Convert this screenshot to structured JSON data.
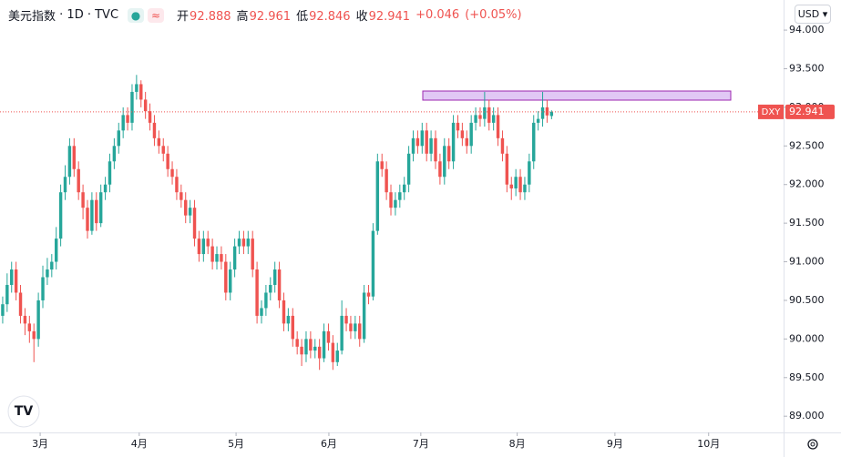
{
  "chart_data": {
    "type": "candlestick",
    "title": "美元指数",
    "interval": "1D",
    "exchange": "TVC",
    "ohlc": [
      {
        "label": "开",
        "value": 92.888
      },
      {
        "label": "高",
        "value": 92.961
      },
      {
        "label": "低",
        "value": 92.846
      },
      {
        "label": "收",
        "value": 92.941
      }
    ],
    "change": "+0.046",
    "change_pct": "(+0.05%)",
    "currency": "USD",
    "symbol": "DXY",
    "up_color": "#26a69a",
    "down_color": "#ef5350",
    "x": [
      0,
      1,
      2,
      3,
      4,
      5,
      6,
      7,
      8,
      9,
      10,
      11,
      12,
      13,
      14,
      15,
      16,
      17,
      18,
      19,
      20,
      21,
      22,
      23,
      24,
      25,
      26,
      27,
      28,
      29,
      30,
      31,
      32,
      33,
      34,
      35,
      36,
      37,
      38,
      39,
      40,
      41,
      42,
      43,
      44,
      45,
      46,
      47,
      48,
      49,
      50,
      51,
      52,
      53,
      54,
      55,
      56,
      57,
      58,
      59,
      60,
      61,
      62,
      63,
      64,
      65,
      66,
      67,
      68,
      69,
      70,
      71,
      72,
      73,
      74,
      75,
      76,
      77,
      78,
      79,
      80,
      81,
      82,
      83,
      84,
      85,
      86,
      87,
      88,
      89,
      90,
      91,
      92,
      93,
      94,
      95,
      96,
      97,
      98,
      99,
      100,
      101,
      102,
      103,
      104,
      105,
      106,
      107,
      108,
      109,
      110,
      111,
      112,
      113,
      114,
      115,
      116,
      117,
      118,
      119,
      120,
      121,
      122,
      123
    ],
    "open": [
      90.3,
      90.45,
      90.7,
      90.9,
      90.6,
      90.3,
      90.2,
      90.1,
      90.0,
      90.5,
      90.8,
      90.9,
      91.0,
      91.3,
      91.9,
      92.1,
      92.5,
      92.2,
      91.9,
      91.7,
      91.4,
      91.8,
      91.5,
      91.9,
      92.0,
      92.3,
      92.5,
      92.7,
      92.9,
      92.8,
      93.2,
      93.3,
      93.1,
      92.95,
      92.8,
      92.6,
      92.5,
      92.4,
      92.2,
      92.1,
      91.9,
      91.8,
      91.6,
      91.7,
      91.3,
      91.1,
      91.3,
      91.2,
      91.0,
      91.1,
      91.0,
      90.6,
      90.9,
      91.2,
      91.3,
      91.2,
      91.3,
      90.9,
      90.3,
      90.4,
      90.6,
      90.7,
      90.9,
      90.5,
      90.2,
      90.3,
      90.0,
      89.9,
      89.8,
      90.0,
      89.85,
      89.9,
      89.75,
      90.1,
      89.95,
      89.7,
      89.85,
      90.3,
      90.2,
      90.1,
      90.2,
      90.0,
      90.6,
      90.55,
      91.4,
      92.3,
      92.2,
      91.9,
      91.7,
      91.8,
      91.9,
      92.0,
      92.4,
      92.6,
      92.5,
      92.7,
      92.4,
      92.6,
      92.3,
      92.1,
      92.5,
      92.3,
      92.8,
      92.7,
      92.6,
      92.5,
      92.8,
      92.9,
      92.85,
      93.0,
      92.8,
      92.9,
      92.6,
      92.4,
      92.0,
      91.95,
      92.1,
      91.9,
      92.0,
      92.3,
      92.8,
      92.85,
      93.0,
      92.888
    ],
    "high": [
      90.55,
      90.85,
      91.0,
      91.0,
      90.7,
      90.4,
      90.3,
      90.2,
      90.6,
      90.95,
      91.05,
      91.1,
      91.45,
      92.0,
      92.25,
      92.6,
      92.6,
      92.3,
      92.0,
      91.8,
      91.9,
      91.9,
      92.0,
      92.1,
      92.4,
      92.6,
      92.8,
      93.0,
      93.0,
      93.3,
      93.42,
      93.35,
      93.2,
      93.05,
      92.9,
      92.7,
      92.6,
      92.5,
      92.3,
      92.2,
      92.0,
      91.9,
      91.8,
      91.8,
      91.4,
      91.4,
      91.4,
      91.3,
      91.2,
      91.2,
      91.1,
      91.0,
      91.3,
      91.4,
      91.4,
      91.4,
      91.4,
      91.0,
      90.5,
      90.7,
      90.8,
      91.0,
      91.0,
      90.6,
      90.4,
      90.4,
      90.1,
      90.0,
      90.1,
      90.1,
      90.0,
      90.0,
      90.2,
      90.2,
      90.05,
      89.95,
      90.5,
      90.4,
      90.3,
      90.3,
      90.3,
      90.7,
      90.7,
      91.5,
      92.4,
      92.4,
      92.3,
      92.0,
      91.9,
      92.0,
      92.1,
      92.5,
      92.7,
      92.7,
      92.8,
      92.8,
      92.7,
      92.7,
      92.4,
      92.6,
      92.6,
      92.9,
      92.9,
      92.8,
      92.7,
      92.9,
      93.0,
      93.0,
      93.2,
      93.1,
      93.0,
      93.0,
      92.7,
      92.5,
      92.1,
      92.2,
      92.2,
      92.1,
      92.4,
      92.9,
      92.95,
      93.2,
      93.1,
      92.961
    ],
    "low": [
      90.2,
      90.35,
      90.6,
      90.5,
      90.2,
      90.05,
      89.95,
      89.7,
      89.9,
      90.4,
      90.7,
      90.8,
      90.9,
      91.2,
      91.8,
      92.0,
      92.1,
      91.8,
      91.55,
      91.3,
      91.35,
      91.4,
      91.45,
      91.8,
      91.9,
      92.2,
      92.4,
      92.6,
      92.7,
      92.7,
      93.1,
      93.0,
      92.85,
      92.7,
      92.5,
      92.4,
      92.3,
      92.1,
      92.0,
      91.8,
      91.7,
      91.5,
      91.5,
      91.2,
      91.0,
      91.0,
      91.1,
      90.9,
      90.9,
      90.9,
      90.5,
      90.5,
      90.8,
      91.1,
      91.1,
      91.1,
      90.8,
      90.2,
      90.2,
      90.3,
      90.5,
      90.6,
      90.4,
      90.1,
      90.1,
      89.9,
      89.8,
      89.65,
      89.7,
      89.75,
      89.75,
      89.6,
      89.7,
      89.85,
      89.6,
      89.65,
      89.8,
      90.1,
      90.0,
      90.0,
      89.9,
      89.95,
      90.45,
      90.5,
      91.35,
      92.1,
      91.8,
      91.6,
      91.6,
      91.7,
      91.8,
      91.9,
      92.3,
      92.4,
      92.4,
      92.3,
      92.3,
      92.2,
      92.0,
      92.0,
      92.2,
      92.2,
      92.6,
      92.5,
      92.4,
      92.4,
      92.7,
      92.75,
      92.75,
      92.7,
      92.7,
      92.5,
      92.3,
      91.9,
      91.8,
      91.85,
      91.8,
      91.8,
      91.9,
      92.2,
      92.7,
      92.75,
      92.8,
      92.846
    ],
    "close": [
      90.45,
      90.7,
      90.9,
      90.6,
      90.3,
      90.2,
      90.1,
      90.0,
      90.5,
      90.8,
      90.9,
      91.0,
      91.3,
      91.9,
      92.1,
      92.5,
      92.2,
      91.9,
      91.7,
      91.4,
      91.8,
      91.5,
      91.9,
      92.0,
      92.3,
      92.5,
      92.7,
      92.9,
      92.8,
      93.2,
      93.3,
      93.1,
      92.95,
      92.8,
      92.6,
      92.5,
      92.4,
      92.2,
      92.1,
      91.9,
      91.8,
      91.6,
      91.7,
      91.3,
      91.1,
      91.3,
      91.2,
      91.0,
      91.1,
      91.0,
      90.6,
      90.9,
      91.2,
      91.3,
      91.2,
      91.3,
      90.9,
      90.3,
      90.4,
      90.6,
      90.7,
      90.9,
      90.5,
      90.2,
      90.3,
      90.0,
      89.9,
      89.8,
      90.0,
      89.85,
      89.9,
      89.75,
      90.1,
      89.95,
      89.7,
      89.85,
      90.3,
      90.2,
      90.1,
      90.2,
      90.0,
      90.6,
      90.55,
      91.4,
      92.3,
      92.2,
      91.9,
      91.7,
      91.8,
      91.9,
      92.0,
      92.4,
      92.6,
      92.5,
      92.7,
      92.4,
      92.6,
      92.3,
      92.1,
      92.5,
      92.3,
      92.8,
      92.7,
      92.6,
      92.5,
      92.8,
      92.9,
      92.85,
      93.0,
      92.8,
      92.9,
      92.6,
      92.4,
      92.0,
      91.95,
      92.1,
      91.9,
      92.0,
      92.3,
      92.8,
      92.85,
      93.0,
      92.895,
      92.941
    ],
    "xlim": [
      -0.6,
      175
    ],
    "ylim": [
      88.79,
      94.39
    ],
    "xticks": [
      {
        "value": 8.4,
        "label": "3月"
      },
      {
        "value": 30.6,
        "label": "4月"
      },
      {
        "value": 52.3,
        "label": "5月"
      },
      {
        "value": 73.1,
        "label": "6月"
      },
      {
        "value": 93.7,
        "label": "7月"
      },
      {
        "value": 115.3,
        "label": "8月"
      },
      {
        "value": 137.2,
        "label": "9月"
      },
      {
        "value": 158.2,
        "label": "10月"
      }
    ],
    "yticks": [
      {
        "value": 89,
        "label": "89.000"
      },
      {
        "value": 89.5,
        "label": "89.500"
      },
      {
        "value": 90,
        "label": "90.000"
      },
      {
        "value": 90.5,
        "label": "90.500"
      },
      {
        "value": 91,
        "label": "91.000"
      },
      {
        "value": 91.5,
        "label": "91.500"
      },
      {
        "value": 92,
        "label": "92.000"
      },
      {
        "value": 92.5,
        "label": "92.500"
      },
      {
        "value": 93,
        "label": "93.000"
      },
      {
        "value": 93.5,
        "label": "93.500"
      },
      {
        "value": 94,
        "label": "94.000"
      }
    ],
    "grid": false
  }
}
